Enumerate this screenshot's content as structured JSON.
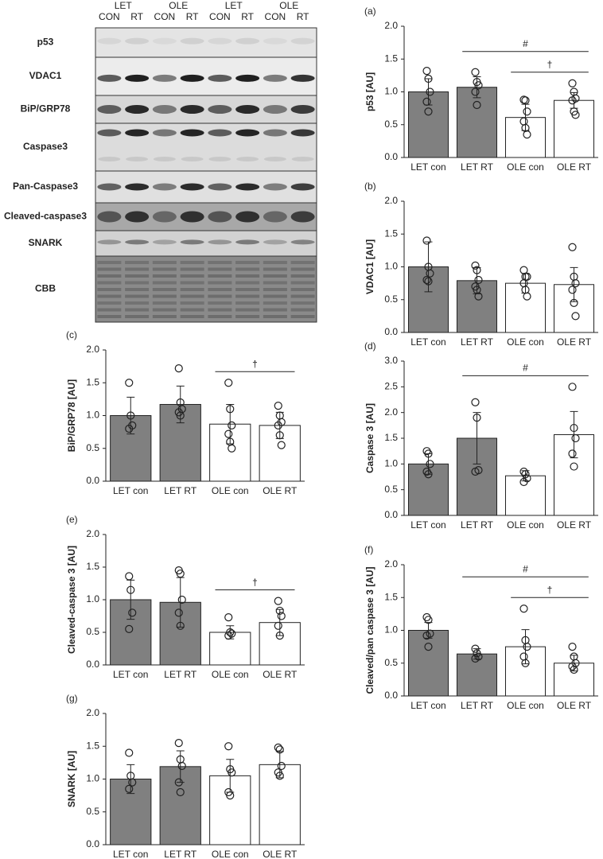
{
  "blot": {
    "groups": [
      "LET",
      "OLE",
      "LET",
      "OLE"
    ],
    "lanes": [
      "CON",
      "RT",
      "CON",
      "RT",
      "CON",
      "RT",
      "CON",
      "RT"
    ],
    "rows": [
      "p53",
      "VDAC1",
      "BiP/GRP78",
      "Caspase3",
      "Pan-Caspase3",
      "Cleaved-caspase3",
      "SNARK",
      "CBB"
    ]
  },
  "chart_data": [
    {
      "type": "bar",
      "panel": "(a)",
      "ylabel": "p53 [AU]",
      "categories": [
        "LET con",
        "LET RT",
        "OLE con",
        "OLE RT"
      ],
      "values": [
        1.0,
        1.07,
        0.61,
        0.87
      ],
      "errors": [
        0.2,
        0.16,
        0.2,
        0.12
      ],
      "colors": [
        "#808080",
        "#808080",
        "#ffffff",
        "#ffffff"
      ],
      "points": [
        [
          1.32,
          1.2,
          1.0,
          0.85,
          0.7
        ],
        [
          1.3,
          1.15,
          1.1,
          1.0,
          0.8
        ],
        [
          0.88,
          0.87,
          0.7,
          0.55,
          0.45,
          0.35
        ],
        [
          1.13,
          1.0,
          0.9,
          0.87,
          0.7,
          0.65
        ]
      ],
      "brackets": [
        {
          "label": "†",
          "from": "OLE con",
          "to": "OLE RT"
        },
        {
          "label": "#",
          "from": "LET RT",
          "to": "OLE RT"
        }
      ],
      "ylim": [
        0,
        2
      ],
      "yticks": [
        {
          "value": 0,
          "label": "0.0"
        },
        0.5,
        {
          "value": 1,
          "label": "1.0"
        },
        1.5,
        {
          "value": 2,
          "label": "2.0"
        }
      ]
    },
    {
      "type": "bar",
      "panel": "(b)",
      "ylabel": "VDAC1 [AU]",
      "categories": [
        "LET con",
        "LET RT",
        "OLE con",
        "OLE RT"
      ],
      "values": [
        1.0,
        0.79,
        0.75,
        0.73
      ],
      "errors": [
        0.38,
        0.2,
        0.15,
        0.26
      ],
      "colors": [
        "#808080",
        "#808080",
        "#ffffff",
        "#ffffff"
      ],
      "points": [
        [
          1.4,
          1.0,
          0.9,
          0.8,
          0.78
        ],
        [
          1.02,
          0.95,
          0.8,
          0.7,
          0.65,
          0.55
        ],
        [
          0.95,
          0.85,
          0.85,
          0.75,
          0.65,
          0.55
        ],
        [
          1.3,
          0.85,
          0.75,
          0.65,
          0.45,
          0.25
        ]
      ],
      "brackets": [],
      "ylim": [
        0,
        2
      ],
      "yticks": [
        {
          "value": 0,
          "label": "0.0"
        },
        0.5,
        {
          "value": 1,
          "label": "1.0"
        },
        1.5,
        {
          "value": 2,
          "label": "2.0"
        }
      ]
    },
    {
      "type": "bar",
      "panel": "(c)",
      "ylabel": "BiP/GRP78 [AU]",
      "categories": [
        "LET con",
        "LET RT",
        "OLE con",
        "OLE RT"
      ],
      "values": [
        1.0,
        1.17,
        0.87,
        0.85
      ],
      "errors": [
        0.28,
        0.28,
        0.3,
        0.2
      ],
      "colors": [
        "#808080",
        "#808080",
        "#ffffff",
        "#ffffff"
      ],
      "points": [
        [
          1.5,
          1.0,
          0.85,
          0.8
        ],
        [
          1.72,
          1.2,
          1.1,
          1.05,
          1.0
        ],
        [
          1.5,
          1.1,
          0.85,
          0.72,
          0.6,
          0.5
        ],
        [
          1.15,
          1.0,
          0.9,
          0.85,
          0.7,
          0.55
        ]
      ],
      "brackets": [
        {
          "label": "†",
          "from": "OLE con",
          "to": "OLE RT"
        }
      ],
      "ylim": [
        0,
        2
      ],
      "yticks": [
        {
          "value": 0,
          "label": "0.0"
        },
        0.5,
        {
          "value": 1,
          "label": "1.0"
        },
        1.5,
        {
          "value": 2,
          "label": "2.0"
        }
      ]
    },
    {
      "type": "bar",
      "panel": "(d)",
      "ylabel": "Caspase 3 [AU]",
      "categories": [
        "LET con",
        "LET RT",
        "OLE con",
        "OLE RT"
      ],
      "values": [
        1.0,
        1.5,
        0.77,
        1.57
      ],
      "errors": [
        0.2,
        0.5,
        0.1,
        0.45
      ],
      "colors": [
        "#808080",
        "#808080",
        "#ffffff",
        "#ffffff"
      ],
      "points": [
        [
          1.25,
          1.2,
          1.0,
          0.85,
          0.8
        ],
        [
          2.2,
          1.9,
          0.88,
          0.85
        ],
        [
          0.85,
          0.8,
          0.72,
          0.65
        ],
        [
          2.5,
          1.7,
          1.5,
          1.2,
          0.95
        ]
      ],
      "brackets": [
        {
          "label": "#",
          "from": "LET RT",
          "to": "OLE RT"
        }
      ],
      "ylim": [
        0,
        3
      ],
      "yticks": [
        {
          "value": 0,
          "label": "0.0"
        },
        0.5,
        {
          "value": 1,
          "label": "1.0"
        },
        1.5,
        {
          "value": 2,
          "label": "2.0"
        },
        2.5,
        {
          "value": 3,
          "label": "3.0"
        }
      ]
    },
    {
      "type": "bar",
      "panel": "(e)",
      "ylabel": "Cleaved-caspase 3 [AU]",
      "categories": [
        "LET con",
        "LET RT",
        "OLE con",
        "OLE RT"
      ],
      "values": [
        1.0,
        0.96,
        0.5,
        0.65
      ],
      "errors": [
        0.3,
        0.38,
        0.1,
        0.2
      ],
      "colors": [
        "#808080",
        "#808080",
        "#ffffff",
        "#ffffff"
      ],
      "points": [
        [
          1.36,
          1.15,
          0.8,
          0.55
        ],
        [
          1.45,
          1.4,
          1.0,
          0.8,
          0.6
        ],
        [
          0.73,
          0.5,
          0.48,
          0.45
        ],
        [
          0.98,
          0.83,
          0.75,
          0.6,
          0.45
        ]
      ],
      "brackets": [
        {
          "label": "†",
          "from": "OLE con",
          "to": "OLE RT"
        }
      ],
      "ylim": [
        0,
        2
      ],
      "yticks": [
        {
          "value": 0,
          "label": "0.0"
        },
        0.5,
        {
          "value": 1,
          "label": "1.0"
        },
        1.5,
        {
          "value": 2,
          "label": "2.0"
        }
      ]
    },
    {
      "type": "bar",
      "panel": "(f)",
      "ylabel": "Cleaved/pan caspase 3 [AU]",
      "categories": [
        "LET con",
        "LET RT",
        "OLE con",
        "OLE RT"
      ],
      "values": [
        1.0,
        0.64,
        0.75,
        0.5
      ],
      "errors": [
        0.12,
        0.08,
        0.26,
        0.12
      ],
      "colors": [
        "#808080",
        "#808080",
        "#ffffff",
        "#ffffff"
      ],
      "points": [
        [
          1.2,
          1.16,
          0.95,
          0.92,
          0.75
        ],
        [
          0.72,
          0.65,
          0.6,
          0.57
        ],
        [
          1.33,
          0.85,
          0.75,
          0.6,
          0.5
        ],
        [
          0.75,
          0.6,
          0.5,
          0.45,
          0.4
        ]
      ],
      "brackets": [
        {
          "label": "†",
          "from": "OLE con",
          "to": "OLE RT"
        },
        {
          "label": "#",
          "from": "LET RT",
          "to": "OLE RT"
        }
      ],
      "ylim": [
        0,
        2
      ],
      "yticks": [
        {
          "value": 0,
          "label": "0.0"
        },
        0.5,
        {
          "value": 1,
          "label": "1.0"
        },
        1.5,
        {
          "value": 2,
          "label": "2.0"
        }
      ]
    },
    {
      "type": "bar",
      "panel": "(g)",
      "ylabel": "SNARK [AU]",
      "categories": [
        "LET con",
        "LET RT",
        "OLE con",
        "OLE RT"
      ],
      "values": [
        1.0,
        1.19,
        1.05,
        1.22
      ],
      "errors": [
        0.22,
        0.24,
        0.25,
        0.2
      ],
      "colors": [
        "#808080",
        "#808080",
        "#ffffff",
        "#ffffff"
      ],
      "points": [
        [
          1.4,
          1.05,
          0.95,
          0.85
        ],
        [
          1.55,
          1.3,
          1.2,
          0.95,
          0.8
        ],
        [
          1.5,
          1.15,
          1.1,
          0.8,
          0.75
        ],
        [
          1.48,
          1.45,
          1.2,
          1.1,
          1.05
        ]
      ],
      "brackets": [],
      "ylim": [
        0,
        2
      ],
      "yticks": [
        {
          "value": 0,
          "label": "0.0"
        },
        0.5,
        {
          "value": 1,
          "label": "1.0"
        },
        1.5,
        {
          "value": 2,
          "label": "2.0"
        }
      ]
    }
  ]
}
